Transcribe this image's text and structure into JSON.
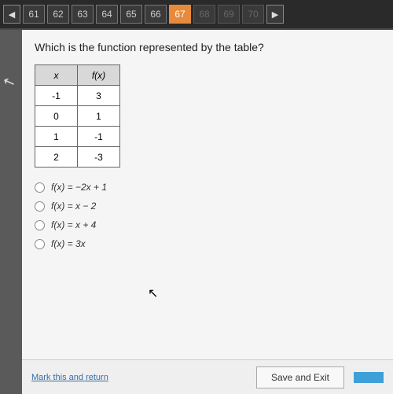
{
  "nav": {
    "items": [
      {
        "label": "61",
        "state": "normal"
      },
      {
        "label": "62",
        "state": "normal"
      },
      {
        "label": "63",
        "state": "normal"
      },
      {
        "label": "64",
        "state": "normal"
      },
      {
        "label": "65",
        "state": "normal"
      },
      {
        "label": "66",
        "state": "normal"
      },
      {
        "label": "67",
        "state": "active"
      },
      {
        "label": "68",
        "state": "disabled"
      },
      {
        "label": "69",
        "state": "disabled"
      },
      {
        "label": "70",
        "state": "disabled"
      }
    ],
    "prev_glyph": "◀",
    "next_glyph": "▶",
    "colors": {
      "bg": "#2a2a2a",
      "item_bg": "#3a3a3a",
      "active_bg": "#e88a3c"
    }
  },
  "question": "Which is the function represented by the table?",
  "table": {
    "headers": [
      "x",
      "f(x)"
    ],
    "rows": [
      [
        "-1",
        "3"
      ],
      [
        "0",
        "1"
      ],
      [
        "1",
        "-1"
      ],
      [
        "2",
        "-3"
      ]
    ],
    "header_bg": "#d8d8d8",
    "cell_bg": "#ffffff",
    "border_color": "#666"
  },
  "options": [
    "f(x) = −2x + 1",
    "f(x) = x − 2",
    "f(x) = x + 4",
    "f(x) = 3x"
  ],
  "footer": {
    "link": "Mark this and return",
    "save": "Save and Exit",
    "next": ""
  },
  "colors": {
    "page_bg": "#f5f5f5",
    "outer_bg": "#4a4a4a",
    "link": "#3a6ea5",
    "primary_btn": "#3fa0d8"
  }
}
